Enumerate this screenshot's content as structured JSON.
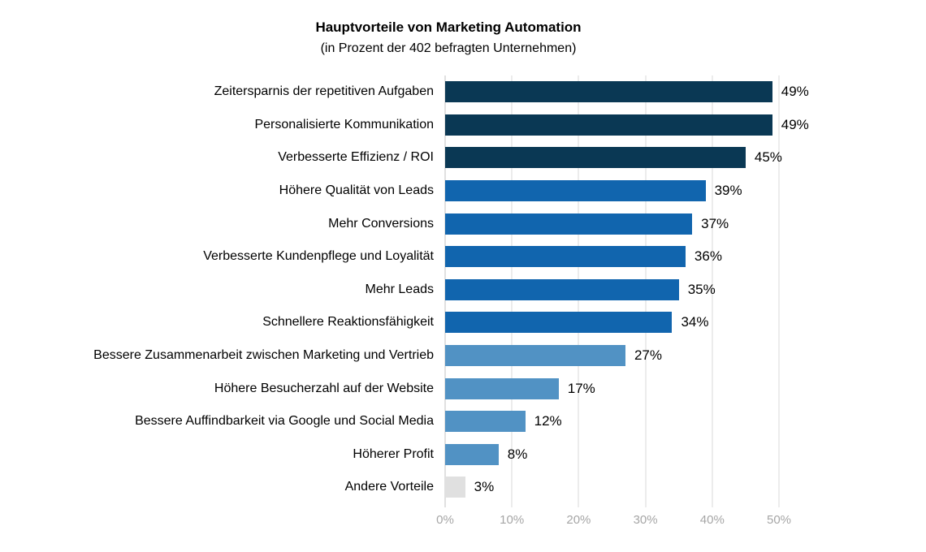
{
  "chart": {
    "title": "Hauptvorteile von Marketing Automation",
    "subtitle": "(in Prozent der 402 befragten Unternehmen)",
    "axis_max": 50,
    "x_ticks": [
      "0%",
      "10%",
      "20%",
      "30%",
      "40%",
      "50%"
    ],
    "colors": {
      "dark_navy": "#0a3854",
      "medium_blue": "#1165ae",
      "light_blue": "#5192c4",
      "gray": "#e0e0e0",
      "gridline": "#d9d9d9",
      "tick_text": "#a6a6a6"
    },
    "bars": [
      {
        "label": "Zeitersparnis der repetitiven Aufgaben",
        "value": 49,
        "display": "49%",
        "color": "#0a3854"
      },
      {
        "label": "Personalisierte Kommunikation",
        "value": 49,
        "display": "49%",
        "color": "#0a3854"
      },
      {
        "label": "Verbesserte Effizienz / ROI",
        "value": 45,
        "display": "45%",
        "color": "#0a3854"
      },
      {
        "label": "Höhere Qualität von Leads",
        "value": 39,
        "display": "39%",
        "color": "#1165ae"
      },
      {
        "label": "Mehr Conversions",
        "value": 37,
        "display": "37%",
        "color": "#1165ae"
      },
      {
        "label": "Verbesserte Kundenpflege und Loyalität",
        "value": 36,
        "display": "36%",
        "color": "#1165ae"
      },
      {
        "label": "Mehr Leads",
        "value": 35,
        "display": "35%",
        "color": "#1165ae"
      },
      {
        "label": "Schnellere Reaktionsfähigkeit",
        "value": 34,
        "display": "34%",
        "color": "#1165ae"
      },
      {
        "label": "Bessere Zusammenarbeit zwischen Marketing und Vertrieb",
        "value": 27,
        "display": "27%",
        "color": "#5192c4"
      },
      {
        "label": "Höhere Besucherzahl auf der Website",
        "value": 17,
        "display": "17%",
        "color": "#5192c4"
      },
      {
        "label": "Bessere Auffindbarkeit via Google und Social Media",
        "value": 12,
        "display": "12%",
        "color": "#5192c4"
      },
      {
        "label": "Höherer Profit",
        "value": 8,
        "display": "8%",
        "color": "#5192c4"
      },
      {
        "label": "Andere Vorteile",
        "value": 3,
        "display": "3%",
        "color": "#e0e0e0"
      }
    ]
  },
  "chart_data": {
    "type": "bar",
    "orientation": "horizontal",
    "title": "Hauptvorteile von Marketing Automation",
    "subtitle": "(in Prozent der 402 befragten Unternehmen)",
    "categories": [
      "Zeitersparnis der repetitiven Aufgaben",
      "Personalisierte Kommunikation",
      "Verbesserte Effizienz / ROI",
      "Höhere Qualität von Leads",
      "Mehr Conversions",
      "Verbesserte Kundenpflege und Loyalität",
      "Mehr Leads",
      "Schnellere Reaktionsfähigkeit",
      "Bessere Zusammenarbeit zwischen Marketing und Vertrieb",
      "Höhere Besucherzahl auf der Website",
      "Bessere Auffindbarkeit via Google und Social Media",
      "Höherer Profit",
      "Andere Vorteile"
    ],
    "values": [
      49,
      49,
      45,
      39,
      37,
      36,
      35,
      34,
      27,
      17,
      12,
      8,
      3
    ],
    "data_labels": [
      "49%",
      "49%",
      "45%",
      "39%",
      "37%",
      "36%",
      "35%",
      "34%",
      "27%",
      "17%",
      "12%",
      "8%",
      "3%"
    ],
    "bar_colors": [
      "#0a3854",
      "#0a3854",
      "#0a3854",
      "#1165ae",
      "#1165ae",
      "#1165ae",
      "#1165ae",
      "#1165ae",
      "#5192c4",
      "#5192c4",
      "#5192c4",
      "#5192c4",
      "#e0e0e0"
    ],
    "xlabel": "",
    "ylabel": "",
    "xlim": [
      0,
      50
    ],
    "x_tick_labels": [
      "0%",
      "10%",
      "20%",
      "30%",
      "40%",
      "50%"
    ],
    "grid": true,
    "legend": false
  }
}
